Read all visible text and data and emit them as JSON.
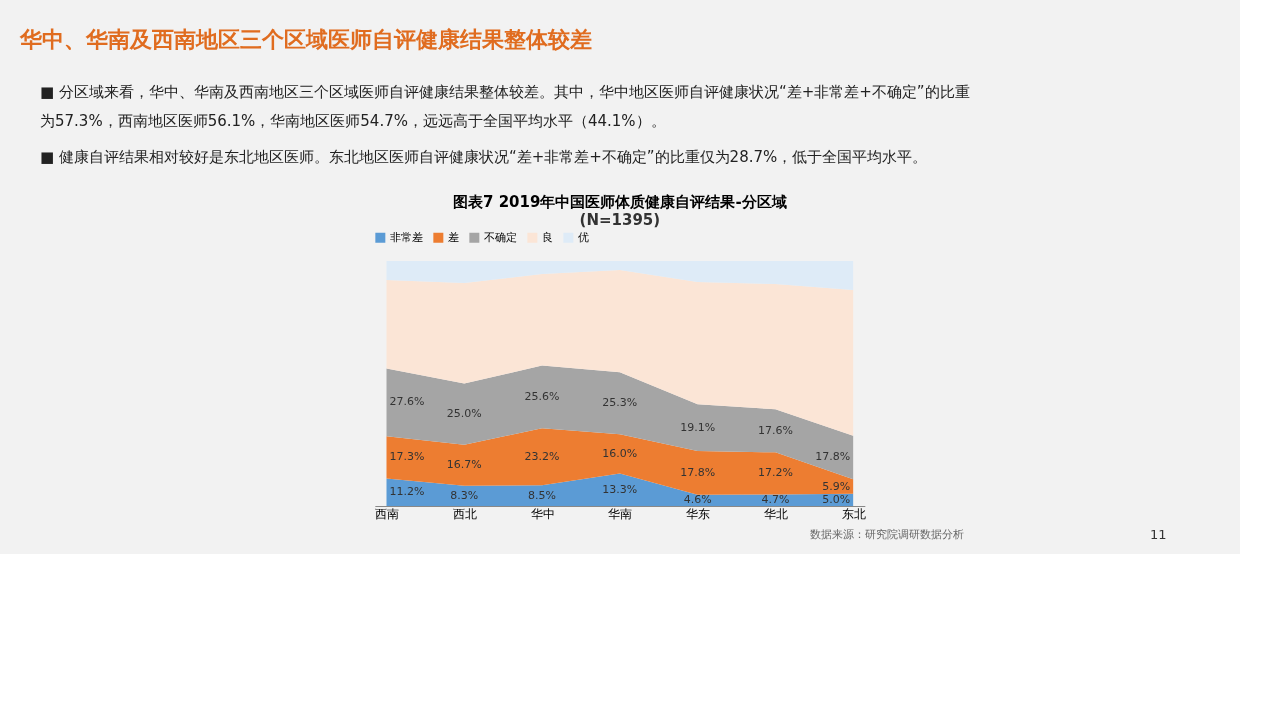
{
  "chart_data": {
    "type": "area",
    "stacked": true,
    "title": "图表7 2019年中国医师体质健康自评结果-分区域",
    "subtitle": "(N=1395)",
    "categories": [
      "西南",
      "西北",
      "华中",
      "华南",
      "华东",
      "华北",
      "东北"
    ],
    "series": [
      {
        "name": "非常差",
        "color": "#5b9bd5",
        "values": [
          11.2,
          8.3,
          8.5,
          13.3,
          4.6,
          4.7,
          5.0
        ],
        "value_labels": [
          "11.2%",
          "8.3%",
          "8.5%",
          "13.3%",
          "4.6%",
          "4.7%",
          "5.0%"
        ]
      },
      {
        "name": "差",
        "color": "#ed7d31",
        "values": [
          17.3,
          16.7,
          23.2,
          16.0,
          17.8,
          17.2,
          5.9
        ],
        "value_labels": [
          "17.3%",
          "16.7%",
          "23.2%",
          "16.0%",
          "17.8%",
          "17.2%",
          "5.9%"
        ]
      },
      {
        "name": "不确定",
        "color": "#a5a5a5",
        "values": [
          27.6,
          25.0,
          25.6,
          25.3,
          19.1,
          17.6,
          17.8
        ],
        "value_labels": [
          "27.6%",
          "25.0%",
          "25.6%",
          "25.3%",
          "19.1%",
          "17.6%",
          "17.8%"
        ]
      },
      {
        "name": "良",
        "color": "#fbe5d6",
        "values": [
          36.1,
          41.0,
          37.4,
          41.7,
          49.9,
          51.1,
          59.5
        ]
      },
      {
        "name": "优",
        "color": "#deebf7",
        "values": [
          7.8,
          9.0,
          5.3,
          3.7,
          8.6,
          9.4,
          11.8
        ]
      }
    ],
    "tick_labels": "x",
    "grid": false,
    "legend": "top",
    "annotations": [
      "华中、华南及西南地区三个区域医师自评健康结果整体较差",
      "■ 分区域来看，华中、华南及西南地区三个区域医师自评健康结果整体较差。其中，华中地区医师自评健康状况“差+非常差+不确定”的比重为57.3%，西南地区医师56.1%，华南地区医师54.7%，远远高于全国平均水平（44.1%）。",
      "■ 健康自评结果相对较好是东北地区医师。东北地区医师自评健康状况“差+非常差+不确定”的比重仅为28.7%，低于全国平均水平。",
      "11",
      "数据来源：研究院调研数据分析"
    ]
  }
}
